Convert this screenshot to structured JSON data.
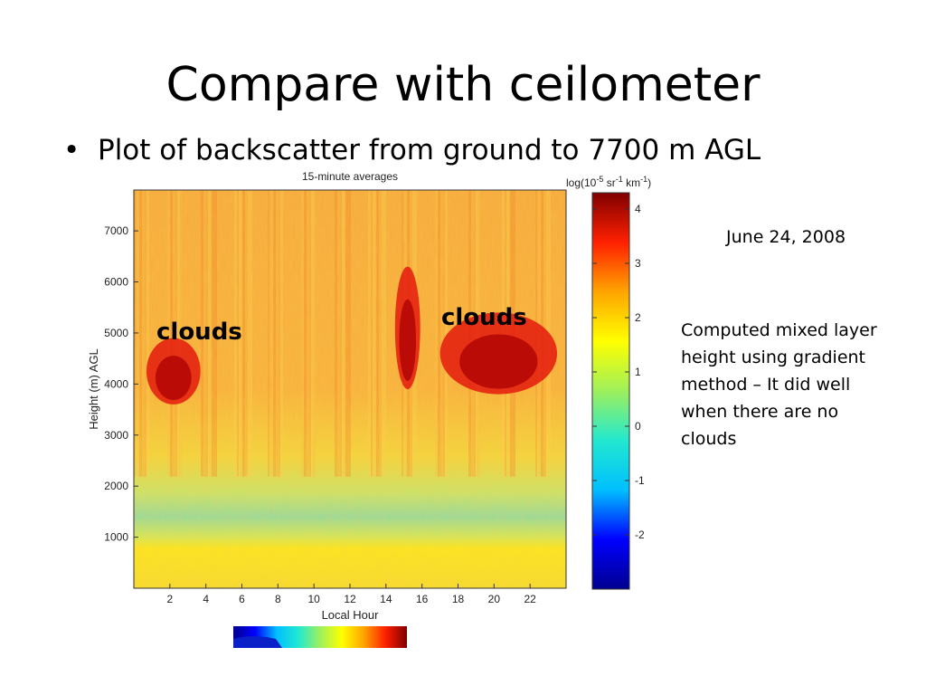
{
  "slide": {
    "title": "Compare with ceilometer",
    "bullet_symbol": "•",
    "bullet_text": "Plot of backscatter from ground to 7700 m AGL",
    "date": "June 24, 2008",
    "note": "Computed mixed layer height using gradient method – It did well when there are no clouds",
    "cloud_labels": [
      "clouds",
      "clouds"
    ]
  },
  "chart_data": {
    "type": "heatmap",
    "title": "15-minute averages",
    "xlabel": "Local Hour",
    "ylabel": "Height   (m) AGL",
    "colorbar_label": "log(10",
    "colorbar_exp1": "-5",
    "colorbar_mid": " sr",
    "colorbar_exp2": "-1",
    "colorbar_mid2": " km",
    "colorbar_exp3": "-1",
    "colorbar_end": ")",
    "xlim": [
      0,
      24
    ],
    "ylim": [
      0,
      7800
    ],
    "x_ticks": [
      2,
      4,
      6,
      8,
      10,
      12,
      14,
      16,
      18,
      20,
      22
    ],
    "y_ticks": [
      1000,
      2000,
      3000,
      4000,
      5000,
      6000,
      7000
    ],
    "colorbar_ticks": [
      4,
      3,
      2,
      1,
      0,
      -1,
      -2
    ],
    "colorbar_range": [
      -3,
      4.3
    ],
    "colormap": [
      "#00008f",
      "#0000ff",
      "#00bfff",
      "#22e8d0",
      "#9ef05c",
      "#ffff00",
      "#ffa500",
      "#ff2000",
      "#800000"
    ],
    "cloud_regions": [
      {
        "x_start": 0.7,
        "x_end": 3.7,
        "y_start": 3600,
        "y_end": 4900
      },
      {
        "x_start": 14.5,
        "x_end": 15.9,
        "y_start": 3900,
        "y_end": 6300
      },
      {
        "x_start": 17.0,
        "x_end": 23.5,
        "y_start": 3800,
        "y_end": 5400
      }
    ],
    "mixed_layer_band": {
      "y_start": 1200,
      "y_end": 2200
    }
  }
}
